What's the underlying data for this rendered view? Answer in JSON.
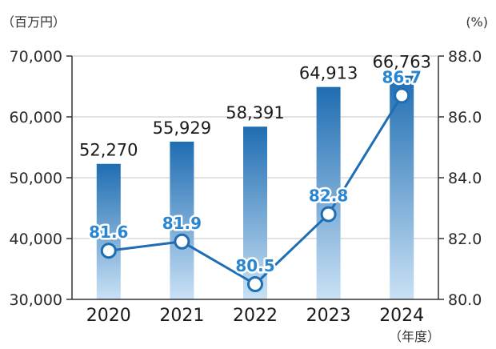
{
  "chart_data": {
    "type": "bar",
    "categories": [
      "2020",
      "2021",
      "2022",
      "2023",
      "2024"
    ],
    "series": [
      {
        "type": "bar",
        "axis": "left",
        "values": [
          52270,
          55929,
          58391,
          64913,
          66763
        ],
        "labels": [
          "52,270",
          "55,929",
          "58,391",
          "64,913",
          "66,763"
        ]
      },
      {
        "type": "line",
        "axis": "right",
        "values": [
          81.6,
          81.9,
          80.5,
          82.8,
          86.7
        ],
        "labels": [
          "81.6",
          "81.9",
          "80.5",
          "82.8",
          "86.7"
        ]
      }
    ],
    "left_axis": {
      "unit_label": "（百万円）",
      "ylim": [
        30000,
        70000
      ],
      "ticks": [
        30000,
        40000,
        50000,
        60000,
        70000
      ],
      "tick_labels": [
        "30,000",
        "40,000",
        "50,000",
        "60,000",
        "70,000"
      ]
    },
    "right_axis": {
      "unit_label": "(%)",
      "ylim": [
        80.0,
        88.0
      ],
      "ticks": [
        80,
        82,
        84,
        86,
        88
      ],
      "tick_labels": [
        "80.0",
        "82.0",
        "84.0",
        "86.0",
        "88.0"
      ]
    },
    "x_unit_label": "（年度）",
    "grid": true,
    "colors": {
      "bar_top": "#1f6db2",
      "bar_bottom": "#c9e1f5",
      "line": "#1f6db2",
      "line_label": "#2a86d1",
      "grid": "#d9d9d9",
      "axis": "#333333"
    }
  }
}
